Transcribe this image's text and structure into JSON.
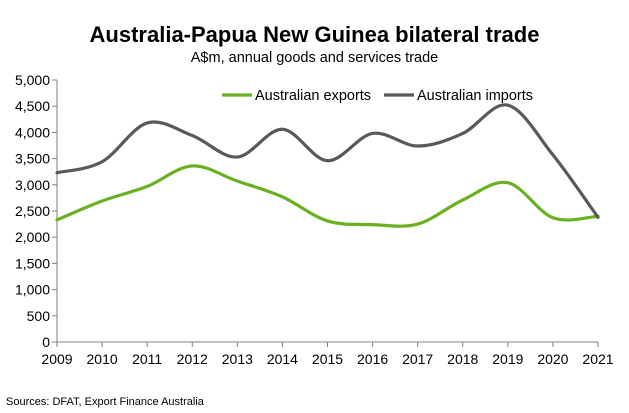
{
  "chart_data": {
    "type": "line",
    "title": "Australia-Papua New Guinea bilateral trade",
    "subtitle": "A$m, annual goods and services trade",
    "source": "Sources: DFAT, Export Finance Australia",
    "x": [
      2009,
      2010,
      2011,
      2012,
      2013,
      2014,
      2015,
      2016,
      2017,
      2018,
      2019,
      2020,
      2021
    ],
    "ylim": [
      0,
      5000
    ],
    "yticks": [
      0,
      500,
      1000,
      1500,
      2000,
      2500,
      3000,
      3500,
      4000,
      4500,
      5000
    ],
    "ytick_labels": [
      "0",
      "500",
      "1,000",
      "1,500",
      "2,000",
      "2,500",
      "3,000",
      "3,500",
      "4,000",
      "4,500",
      "5,000"
    ],
    "grid": false,
    "legend_position": "top",
    "series": [
      {
        "name": "Australian exports",
        "color": "#6ab023",
        "values": [
          2330,
          2690,
          2970,
          3360,
          3070,
          2770,
          2310,
          2240,
          2250,
          2710,
          3040,
          2370,
          2400
        ]
      },
      {
        "name": "Australian imports",
        "color": "#595959",
        "values": [
          3230,
          3440,
          4180,
          3940,
          3530,
          4060,
          3460,
          3980,
          3740,
          3980,
          4520,
          3570,
          2380
        ]
      }
    ]
  }
}
